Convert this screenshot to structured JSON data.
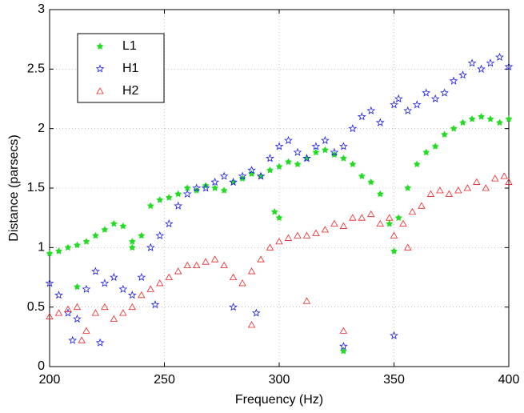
{
  "chart_data": {
    "type": "scatter",
    "xlabel": "Frequency (Hz)",
    "ylabel": "Distance (parsecs)",
    "xlim": [
      200,
      400
    ],
    "ylim": [
      0,
      3
    ],
    "xticks": [
      200,
      250,
      300,
      350,
      400
    ],
    "yticks": [
      0,
      0.5,
      1,
      1.5,
      2,
      2.5,
      3
    ],
    "grid": true,
    "legend": "upper left",
    "series": [
      {
        "name": "L1",
        "color": "#22dd22",
        "marker": "asterisk",
        "x": [
          200,
          204,
          208,
          212,
          216,
          220,
          224,
          228,
          232,
          236,
          240,
          244,
          248,
          252,
          256,
          260,
          264,
          268,
          272,
          276,
          280,
          284,
          288,
          292,
          296,
          300,
          304,
          308,
          312,
          316,
          320,
          324,
          328,
          332,
          336,
          340,
          344,
          348,
          350,
          352,
          356,
          360,
          364,
          368,
          372,
          376,
          380,
          384,
          388,
          392,
          396,
          400,
          212,
          236,
          298,
          300,
          328
        ],
        "values": [
          0.95,
          0.97,
          1.0,
          1.02,
          1.05,
          1.1,
          1.15,
          1.2,
          1.18,
          1.0,
          1.1,
          1.35,
          1.4,
          1.42,
          1.45,
          1.5,
          1.48,
          1.52,
          1.5,
          1.48,
          1.55,
          1.58,
          1.62,
          1.6,
          1.65,
          1.68,
          1.72,
          1.7,
          1.75,
          1.8,
          1.82,
          1.78,
          1.75,
          1.7,
          1.6,
          1.55,
          1.45,
          1.2,
          0.97,
          1.25,
          1.5,
          1.7,
          1.8,
          1.85,
          1.95,
          2.0,
          2.05,
          2.08,
          2.1,
          2.08,
          2.05,
          2.08,
          0.67,
          1.05,
          1.3,
          1.25,
          0.13
        ]
      },
      {
        "name": "H1",
        "color": "#1a1aee",
        "marker": "pentagram",
        "x": [
          200,
          204,
          208,
          210,
          212,
          216,
          220,
          224,
          228,
          232,
          236,
          240,
          244,
          248,
          252,
          256,
          260,
          264,
          268,
          272,
          276,
          280,
          284,
          288,
          292,
          296,
          300,
          304,
          308,
          312,
          316,
          320,
          324,
          328,
          332,
          336,
          340,
          344,
          350,
          352,
          356,
          360,
          364,
          368,
          372,
          376,
          380,
          384,
          388,
          392,
          396,
          400,
          222,
          246,
          280,
          290,
          328,
          350
        ],
        "values": [
          0.7,
          0.6,
          0.45,
          0.22,
          0.4,
          0.65,
          0.8,
          0.7,
          0.75,
          0.65,
          0.6,
          0.75,
          1.0,
          1.1,
          1.2,
          1.35,
          1.45,
          1.5,
          1.5,
          1.55,
          1.6,
          1.55,
          1.6,
          1.65,
          1.6,
          1.75,
          1.85,
          1.9,
          1.8,
          1.75,
          1.85,
          1.9,
          1.8,
          1.85,
          2.0,
          2.1,
          2.15,
          2.05,
          2.2,
          2.25,
          2.15,
          2.2,
          2.3,
          2.25,
          2.3,
          2.4,
          2.45,
          2.55,
          2.5,
          2.55,
          2.6,
          2.52,
          0.2,
          0.52,
          0.5,
          0.45,
          0.17,
          0.26
        ]
      },
      {
        "name": "H2",
        "color": "#ee2222",
        "marker": "triangle",
        "x": [
          200,
          204,
          208,
          212,
          216,
          220,
          224,
          228,
          232,
          236,
          240,
          244,
          248,
          252,
          256,
          260,
          264,
          268,
          272,
          276,
          280,
          284,
          288,
          292,
          296,
          300,
          304,
          308,
          312,
          316,
          320,
          324,
          328,
          332,
          336,
          340,
          344,
          348,
          350,
          354,
          358,
          362,
          366,
          370,
          374,
          378,
          382,
          386,
          390,
          394,
          398,
          400,
          214,
          288,
          312,
          328,
          356
        ],
        "values": [
          0.42,
          0.45,
          0.48,
          0.5,
          0.3,
          0.45,
          0.5,
          0.4,
          0.45,
          0.5,
          0.6,
          0.65,
          0.7,
          0.75,
          0.8,
          0.85,
          0.85,
          0.88,
          0.9,
          0.85,
          0.75,
          0.7,
          0.8,
          0.9,
          1.0,
          1.05,
          1.08,
          1.1,
          1.1,
          1.12,
          1.15,
          1.2,
          1.18,
          1.25,
          1.25,
          1.28,
          1.2,
          1.25,
          1.1,
          1.2,
          1.3,
          1.35,
          1.45,
          1.48,
          1.45,
          1.48,
          1.5,
          1.55,
          1.5,
          1.58,
          1.6,
          1.55,
          0.22,
          0.35,
          0.55,
          0.3,
          1.0
        ]
      }
    ]
  }
}
